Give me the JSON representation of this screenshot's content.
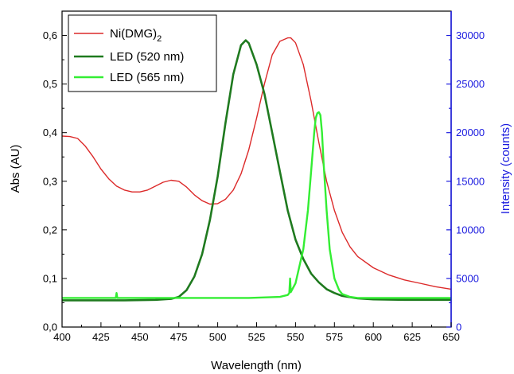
{
  "chart_data": {
    "type": "line",
    "xlabel": "Wavelength (nm)",
    "ylabel_left": "Abs (AU)",
    "ylabel_right": "Intensity (counts)",
    "xlim": [
      400,
      650
    ],
    "ylim_left": [
      0,
      0.65
    ],
    "ylim_right": [
      0,
      32500
    ],
    "x_ticks": [
      400,
      425,
      450,
      475,
      500,
      525,
      550,
      575,
      600,
      625,
      650
    ],
    "y_left_ticks": [
      "0,0",
      "0,1",
      "0,2",
      "0,3",
      "0,4",
      "0,5",
      "0,6"
    ],
    "y_left_tick_values": [
      0,
      0.1,
      0.2,
      0.3,
      0.4,
      0.5,
      0.6
    ],
    "y_right_ticks": [
      0,
      5000,
      10000,
      15000,
      20000,
      25000,
      30000
    ],
    "grid": false,
    "legend_position": "top-left",
    "right_axis_color": "#1a1adf",
    "series": [
      {
        "name": "Ni(DMG)",
        "name_subscript": "2",
        "axis": "left",
        "color": "#dc2a2a",
        "x": [
          400,
          405,
          410,
          415,
          420,
          425,
          430,
          435,
          440,
          445,
          450,
          455,
          460,
          465,
          470,
          475,
          480,
          485,
          490,
          495,
          500,
          505,
          510,
          515,
          520,
          525,
          530,
          535,
          540,
          545,
          547,
          550,
          555,
          560,
          565,
          570,
          575,
          580,
          585,
          590,
          600,
          610,
          620,
          630,
          640,
          650
        ],
        "y": [
          0.393,
          0.392,
          0.388,
          0.372,
          0.35,
          0.325,
          0.305,
          0.29,
          0.282,
          0.278,
          0.278,
          0.282,
          0.29,
          0.298,
          0.302,
          0.3,
          0.288,
          0.272,
          0.26,
          0.253,
          0.254,
          0.263,
          0.282,
          0.315,
          0.365,
          0.43,
          0.5,
          0.56,
          0.588,
          0.595,
          0.595,
          0.585,
          0.54,
          0.465,
          0.38,
          0.3,
          0.24,
          0.195,
          0.165,
          0.145,
          0.122,
          0.107,
          0.097,
          0.09,
          0.083,
          0.078
        ]
      },
      {
        "name": "LED (520 nm)",
        "axis": "right",
        "color": "#1f7a1f",
        "x": [
          400,
          420,
          440,
          460,
          470,
          475,
          480,
          485,
          490,
          495,
          500,
          505,
          510,
          515,
          518,
          520,
          525,
          530,
          535,
          540,
          545,
          550,
          555,
          560,
          565,
          570,
          575,
          580,
          590,
          600,
          620,
          650
        ],
        "y": [
          2750,
          2750,
          2750,
          2800,
          2900,
          3100,
          3800,
          5200,
          7500,
          11000,
          15500,
          21000,
          26000,
          29000,
          29500,
          29200,
          27000,
          24000,
          20000,
          16000,
          12000,
          9000,
          7000,
          5500,
          4600,
          3900,
          3500,
          3200,
          2950,
          2850,
          2800,
          2800
        ]
      },
      {
        "name": "LED (565 nm)",
        "axis": "right",
        "color": "#33ee33",
        "x": [
          400,
          430,
          434.5,
          435,
          435.5,
          440,
          460,
          480,
          500,
          520,
          540,
          545,
          546,
          546.5,
          547,
          550,
          555,
          558,
          560,
          562,
          563,
          564,
          565,
          566,
          567,
          568,
          570,
          572,
          575,
          578,
          580,
          585,
          590,
          600,
          620,
          650
        ],
        "y": [
          3000,
          3000,
          3000,
          3500,
          3000,
          3000,
          3000,
          3000,
          3000,
          3000,
          3100,
          3300,
          3500,
          5000,
          3600,
          4500,
          8000,
          12000,
          16000,
          20000,
          21500,
          22000,
          22100,
          21800,
          20000,
          17000,
          12000,
          8000,
          5000,
          3800,
          3400,
          3100,
          3000,
          3000,
          3000,
          3000
        ]
      }
    ]
  }
}
